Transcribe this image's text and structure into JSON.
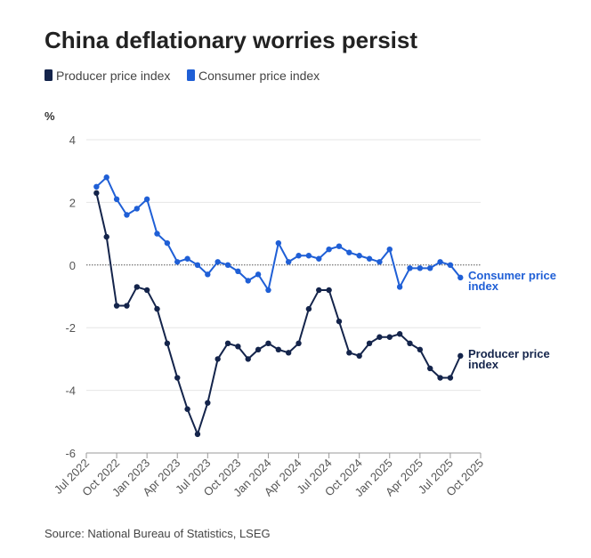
{
  "chart_data": {
    "type": "line",
    "title": "China deflationary worries persist",
    "y_label": "%",
    "source": "Source: National Bureau of Statistics, LSEG",
    "x": [
      "2022-08",
      "2022-09",
      "2022-10",
      "2022-11",
      "2022-12",
      "2023-01",
      "2023-02",
      "2023-03",
      "2023-04",
      "2023-05",
      "2023-06",
      "2023-07",
      "2023-08",
      "2023-09",
      "2023-10",
      "2023-11",
      "2023-12",
      "2024-01",
      "2024-02",
      "2024-03",
      "2024-04",
      "2024-05",
      "2024-06",
      "2024-07",
      "2024-08",
      "2024-09",
      "2024-10",
      "2024-11",
      "2024-12",
      "2025-01",
      "2025-02",
      "2025-03",
      "2025-04",
      "2025-05",
      "2025-06",
      "2025-07",
      "2025-08"
    ],
    "series": [
      {
        "name": "Producer price index",
        "color": "#14244b",
        "values": [
          2.3,
          0.9,
          -1.3,
          -1.3,
          -0.7,
          -0.8,
          -1.4,
          -2.5,
          -3.6,
          -4.6,
          -5.4,
          -4.4,
          -3.0,
          -2.5,
          -2.6,
          -3.0,
          -2.7,
          -2.5,
          -2.7,
          -2.8,
          -2.5,
          -1.4,
          -0.8,
          -0.8,
          -1.8,
          -2.8,
          -2.9,
          -2.5,
          -2.3,
          -2.3,
          -2.2,
          -2.5,
          -2.7,
          -3.3,
          -3.6,
          -3.6,
          -2.9
        ]
      },
      {
        "name": "Consumer price index",
        "color": "#1f5fd6",
        "values": [
          2.5,
          2.8,
          2.1,
          1.6,
          1.8,
          2.1,
          1.0,
          0.7,
          0.1,
          0.2,
          0.0,
          -0.3,
          0.1,
          0.0,
          -0.2,
          -0.5,
          -0.3,
          -0.8,
          0.7,
          0.1,
          0.3,
          0.3,
          0.2,
          0.5,
          0.6,
          0.4,
          0.3,
          0.2,
          0.1,
          0.5,
          -0.7,
          -0.1,
          -0.1,
          -0.1,
          0.1,
          0.0,
          -0.4
        ]
      }
    ],
    "xlim": [
      "2022-07",
      "2025-10"
    ],
    "xticks": [
      {
        "value": "2022-07",
        "label": "Jul 2022"
      },
      {
        "value": "2022-10",
        "label": "Oct 2022"
      },
      {
        "value": "2023-01",
        "label": "Jan 2023"
      },
      {
        "value": "2023-04",
        "label": "Apr 2023"
      },
      {
        "value": "2023-07",
        "label": "Jul 2023"
      },
      {
        "value": "2023-10",
        "label": "Oct 2023"
      },
      {
        "value": "2024-01",
        "label": "Jan 2024"
      },
      {
        "value": "2024-04",
        "label": "Apr 2024"
      },
      {
        "value": "2024-07",
        "label": "Jul 2024"
      },
      {
        "value": "2024-10",
        "label": "Oct 2024"
      },
      {
        "value": "2025-01",
        "label": "Jan 2025"
      },
      {
        "value": "2025-04",
        "label": "Apr 2025"
      },
      {
        "value": "2025-07",
        "label": "Jul 2025"
      },
      {
        "value": "2025-10",
        "label": "Oct 2025"
      }
    ],
    "ylim": [
      -6,
      4
    ],
    "yticks": [
      -6,
      -4,
      -2,
      0,
      2,
      4
    ],
    "grid": true,
    "legend": "top-left"
  }
}
